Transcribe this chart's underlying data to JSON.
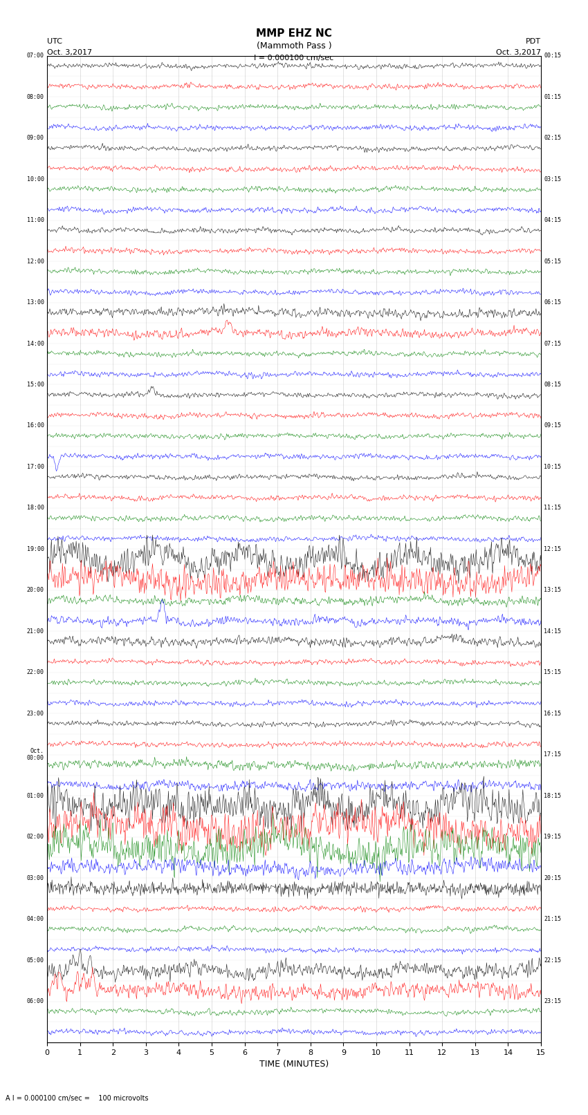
{
  "title_line1": "MMP EHZ NC",
  "title_line2": "(Mammoth Pass )",
  "scale_label": "I = 0.000100 cm/sec",
  "bottom_label": "A I = 0.000100 cm/sec =    100 microvolts",
  "xlabel": "TIME (MINUTES)",
  "utc_label": "UTC",
  "utc_date": "Oct. 3,2017",
  "pdt_label": "PDT",
  "pdt_date": "Oct. 3,2017",
  "left_times": [
    "07:00",
    "",
    "08:00",
    "",
    "09:00",
    "",
    "10:00",
    "",
    "11:00",
    "",
    "12:00",
    "",
    "13:00",
    "",
    "14:00",
    "",
    "15:00",
    "",
    "16:00",
    "",
    "17:00",
    "",
    "18:00",
    "",
    "19:00",
    "",
    "20:00",
    "",
    "21:00",
    "",
    "22:00",
    "",
    "23:00",
    "",
    "Oct.\n00:00",
    "",
    "01:00",
    "",
    "02:00",
    "",
    "03:00",
    "",
    "04:00",
    "",
    "05:00",
    "",
    "06:00",
    ""
  ],
  "right_times": [
    "00:15",
    "",
    "01:15",
    "",
    "02:15",
    "",
    "03:15",
    "",
    "04:15",
    "",
    "05:15",
    "",
    "06:15",
    "",
    "07:15",
    "",
    "08:15",
    "",
    "09:15",
    "",
    "10:15",
    "",
    "11:15",
    "",
    "12:15",
    "",
    "13:15",
    "",
    "14:15",
    "",
    "15:15",
    "",
    "16:15",
    "",
    "17:15",
    "",
    "18:15",
    "",
    "19:15",
    "",
    "20:15",
    "",
    "21:15",
    "",
    "22:15",
    "",
    "23:15",
    ""
  ],
  "n_rows": 48,
  "n_cols": 900,
  "colors_cycle": [
    "black",
    "red",
    "green",
    "blue"
  ],
  "fig_bg": "white",
  "plot_bg": "white",
  "xlim": [
    0,
    15
  ],
  "xticks": [
    0,
    1,
    2,
    3,
    4,
    5,
    6,
    7,
    8,
    9,
    10,
    11,
    12,
    13,
    14,
    15
  ],
  "amplitude_scale": 0.35,
  "noise_base": 0.08,
  "seed": 42
}
